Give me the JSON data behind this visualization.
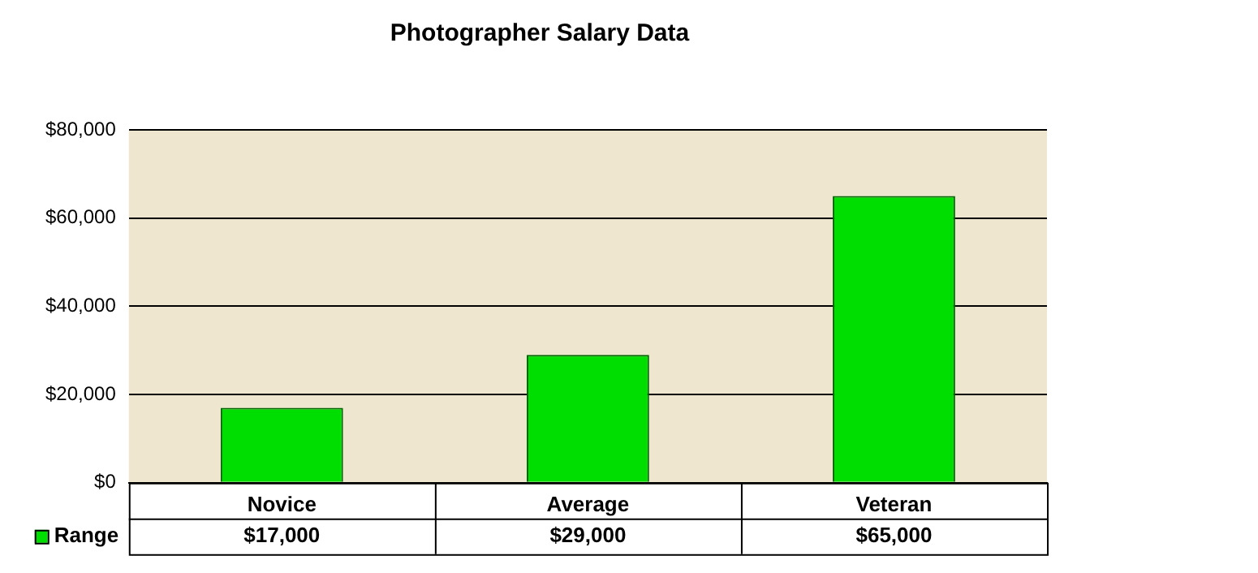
{
  "chart_data": {
    "type": "bar",
    "title": "Photographer Salary Data",
    "categories": [
      "Novice",
      "Average",
      "Veteran"
    ],
    "series": [
      {
        "name": "Range",
        "color": "#00dd00",
        "values": [
          17000,
          29000,
          65000
        ],
        "value_labels": [
          "$17,000",
          "$29,000",
          "$65,000"
        ]
      }
    ],
    "ylim": [
      0,
      80000
    ],
    "yticks": [
      {
        "value": 0,
        "label": "$0"
      },
      {
        "value": 20000,
        "label": "$20,000"
      },
      {
        "value": 40000,
        "label": "$40,000"
      },
      {
        "value": 60000,
        "label": "$60,000"
      },
      {
        "value": 80000,
        "label": "$80,000"
      }
    ],
    "grid": "y",
    "legend": "bottom left"
  }
}
